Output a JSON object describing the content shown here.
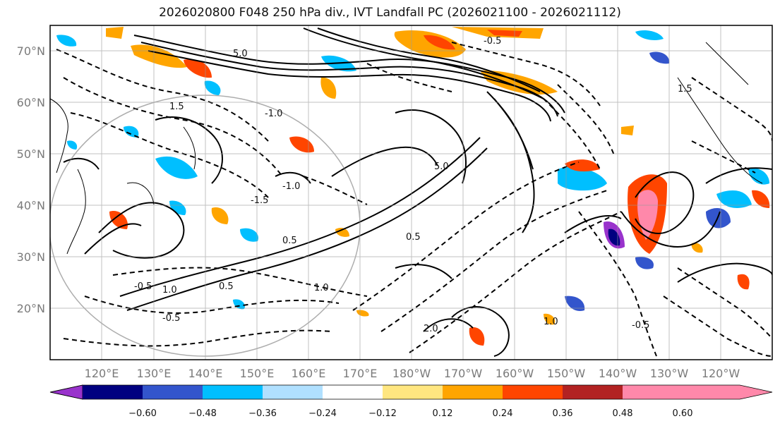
{
  "title": "2026020800 F048 250 hPa div., IVT Landfall PC (2026021100 - 2026021112)",
  "lat_labels": [
    "70°N",
    "60°N",
    "50°N",
    "40°N",
    "30°N",
    "20°N"
  ],
  "lon_labels": [
    "120°E",
    "130°E",
    "140°E",
    "150°E",
    "160°E",
    "170°E",
    "180°W",
    "170°W",
    "160°W",
    "150°W",
    "140°W",
    "130°W",
    "120°W"
  ],
  "contour_labels": [
    "-1.0",
    "-0.5",
    "0.5",
    "1.0",
    "1.5",
    "-1.5",
    "2.0",
    "5.0"
  ],
  "colorbar": {
    "ticks": [
      "−0.60",
      "−0.48",
      "−0.36",
      "−0.24",
      "−0.12",
      "0.12",
      "0.24",
      "0.36",
      "0.48",
      "0.60"
    ],
    "colors": [
      "#9933cc",
      "#000080",
      "#3355cc",
      "#00bfff",
      "#b0e0ff",
      "#ffffff",
      "#ffe680",
      "#ffa500",
      "#ff4500",
      "#b22222",
      "#ff88aa"
    ]
  }
}
